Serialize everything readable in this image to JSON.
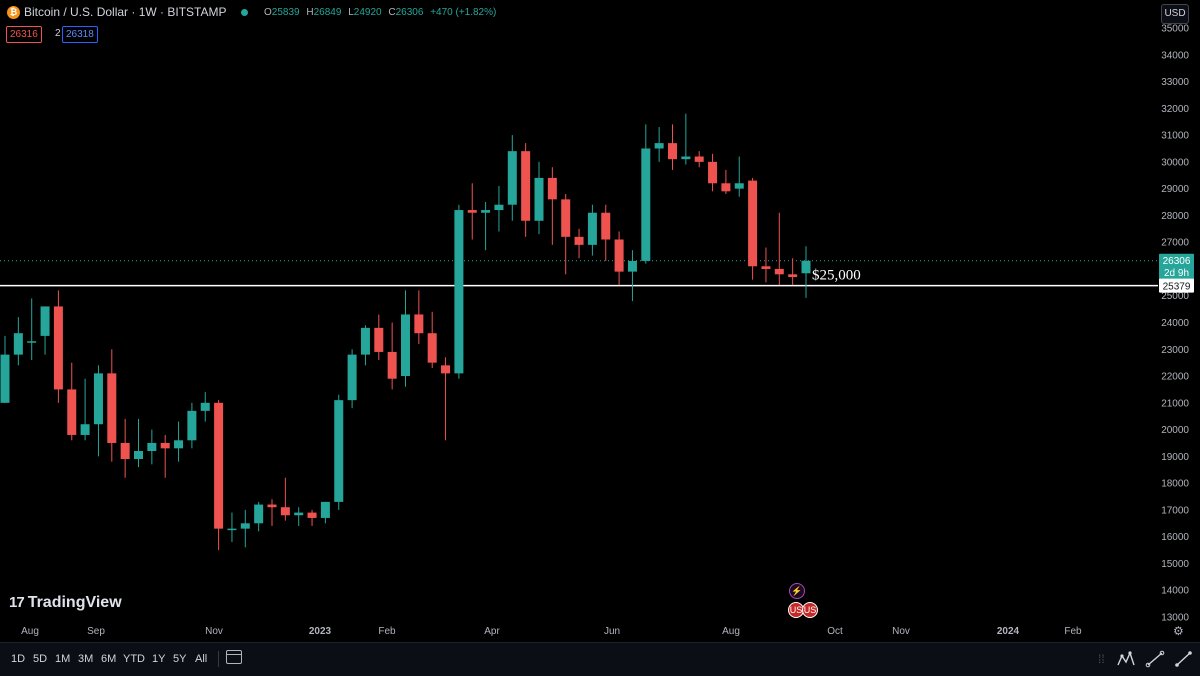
{
  "header": {
    "symbol": "Bitcoin / U.S. Dollar · 1W · BITSTAMP",
    "btc_icon": "₿",
    "open_label": "O",
    "open": "25839",
    "high_label": "H",
    "high": "26849",
    "low_label": "L",
    "low": "24920",
    "close_label": "C",
    "close": "26306",
    "change": "+470 (+1.82%)"
  },
  "trade": {
    "sell": "26316",
    "spread": "2",
    "buy": "26318"
  },
  "currency_button": "USD",
  "colors": {
    "up": "#26a69a",
    "down": "#ef5350",
    "background": "#000000",
    "level_line": "#ffffff",
    "price_line": "#26a69a"
  },
  "chart_data": {
    "type": "candlestick",
    "y_ticks": [
      "35000",
      "34000",
      "33000",
      "32000",
      "31000",
      "30000",
      "29000",
      "28000",
      "27000",
      "26000",
      "25000",
      "24000",
      "23000",
      "22000",
      "21000",
      "20000",
      "19000",
      "18000",
      "17000",
      "16000",
      "15000",
      "14000",
      "13000"
    ],
    "x_ticks": [
      "Aug",
      "Sep",
      "Nov",
      "2023",
      "Feb",
      "Apr",
      "Jun",
      "Aug",
      "Oct",
      "Nov",
      "2024",
      "Feb"
    ],
    "ylim": [
      12500,
      35300
    ],
    "level_line": {
      "value": 25379,
      "label": "$25,000"
    },
    "last_price": {
      "value": 26306,
      "label": "26306",
      "countdown": "2d 9h"
    },
    "level_value_label": "25379",
    "candles": [
      {
        "o": 21000,
        "h": 23500,
        "l": 21000,
        "c": 22800
      },
      {
        "o": 22800,
        "h": 24200,
        "l": 22400,
        "c": 23600
      },
      {
        "o": 23300,
        "h": 24900,
        "l": 22600,
        "c": 23300
      },
      {
        "o": 23500,
        "h": 24600,
        "l": 22800,
        "c": 24600
      },
      {
        "o": 24600,
        "h": 25200,
        "l": 21000,
        "c": 21500
      },
      {
        "o": 21500,
        "h": 22500,
        "l": 19600,
        "c": 19800
      },
      {
        "o": 19800,
        "h": 21900,
        "l": 19600,
        "c": 20200
      },
      {
        "o": 20200,
        "h": 22400,
        "l": 19000,
        "c": 22100
      },
      {
        "o": 22100,
        "h": 23000,
        "l": 18800,
        "c": 19500
      },
      {
        "o": 19500,
        "h": 20400,
        "l": 18200,
        "c": 18900
      },
      {
        "o": 18900,
        "h": 20400,
        "l": 18600,
        "c": 19200
      },
      {
        "o": 19200,
        "h": 20000,
        "l": 18700,
        "c": 19500
      },
      {
        "o": 19500,
        "h": 19800,
        "l": 18200,
        "c": 19300
      },
      {
        "o": 19300,
        "h": 20300,
        "l": 18800,
        "c": 19600
      },
      {
        "o": 19600,
        "h": 21000,
        "l": 19300,
        "c": 20700
      },
      {
        "o": 20700,
        "h": 21400,
        "l": 20300,
        "c": 21000
      },
      {
        "o": 21000,
        "h": 21100,
        "l": 15500,
        "c": 16300
      },
      {
        "o": 16300,
        "h": 16900,
        "l": 15800,
        "c": 16300
      },
      {
        "o": 16300,
        "h": 17000,
        "l": 15600,
        "c": 16500
      },
      {
        "o": 16500,
        "h": 17300,
        "l": 16200,
        "c": 17200
      },
      {
        "o": 17200,
        "h": 17400,
        "l": 16400,
        "c": 17100
      },
      {
        "o": 17100,
        "h": 18200,
        "l": 16600,
        "c": 16800
      },
      {
        "o": 16800,
        "h": 17100,
        "l": 16400,
        "c": 16900
      },
      {
        "o": 16900,
        "h": 17000,
        "l": 16400,
        "c": 16700
      },
      {
        "o": 16700,
        "h": 17300,
        "l": 16500,
        "c": 17300
      },
      {
        "o": 17300,
        "h": 21300,
        "l": 17000,
        "c": 21100
      },
      {
        "o": 21100,
        "h": 23000,
        "l": 20800,
        "c": 22800
      },
      {
        "o": 22800,
        "h": 23900,
        "l": 22400,
        "c": 23800
      },
      {
        "o": 23800,
        "h": 24300,
        "l": 22600,
        "c": 22900
      },
      {
        "o": 22900,
        "h": 24000,
        "l": 21500,
        "c": 21900
      },
      {
        "o": 22000,
        "h": 25200,
        "l": 21600,
        "c": 24300
      },
      {
        "o": 24300,
        "h": 25200,
        "l": 23200,
        "c": 23600
      },
      {
        "o": 23600,
        "h": 24400,
        "l": 22300,
        "c": 22500
      },
      {
        "o": 22400,
        "h": 22700,
        "l": 19600,
        "c": 22100
      },
      {
        "o": 22100,
        "h": 28400,
        "l": 21900,
        "c": 28200
      },
      {
        "o": 28200,
        "h": 29200,
        "l": 27100,
        "c": 28100
      },
      {
        "o": 28100,
        "h": 28500,
        "l": 26700,
        "c": 28200
      },
      {
        "o": 28200,
        "h": 29100,
        "l": 27400,
        "c": 28400
      },
      {
        "o": 28400,
        "h": 31000,
        "l": 27800,
        "c": 30400
      },
      {
        "o": 30400,
        "h": 30700,
        "l": 27200,
        "c": 27800
      },
      {
        "o": 27800,
        "h": 30000,
        "l": 27300,
        "c": 29400
      },
      {
        "o": 29400,
        "h": 29800,
        "l": 26900,
        "c": 28600
      },
      {
        "o": 28600,
        "h": 28800,
        "l": 25800,
        "c": 27200
      },
      {
        "o": 27200,
        "h": 27500,
        "l": 26400,
        "c": 26900
      },
      {
        "o": 26900,
        "h": 28400,
        "l": 26500,
        "c": 28100
      },
      {
        "o": 28100,
        "h": 28400,
        "l": 26300,
        "c": 27100
      },
      {
        "o": 27100,
        "h": 27400,
        "l": 25400,
        "c": 25900
      },
      {
        "o": 25900,
        "h": 26700,
        "l": 24800,
        "c": 26300
      },
      {
        "o": 26300,
        "h": 31400,
        "l": 26200,
        "c": 30500
      },
      {
        "o": 30500,
        "h": 31300,
        "l": 30000,
        "c": 30700
      },
      {
        "o": 30700,
        "h": 31400,
        "l": 29700,
        "c": 30100
      },
      {
        "o": 30100,
        "h": 31800,
        "l": 29900,
        "c": 30200
      },
      {
        "o": 30200,
        "h": 30400,
        "l": 29800,
        "c": 30000
      },
      {
        "o": 30000,
        "h": 30300,
        "l": 28900,
        "c": 29200
      },
      {
        "o": 29200,
        "h": 29700,
        "l": 28800,
        "c": 28900
      },
      {
        "o": 29000,
        "h": 30200,
        "l": 28700,
        "c": 29200
      },
      {
        "o": 29300,
        "h": 29400,
        "l": 25600,
        "c": 26100
      },
      {
        "o": 26100,
        "h": 26800,
        "l": 25500,
        "c": 26000
      },
      {
        "o": 26000,
        "h": 28100,
        "l": 25400,
        "c": 25800
      },
      {
        "o": 25800,
        "h": 26400,
        "l": 25400,
        "c": 25700
      },
      {
        "o": 25839,
        "h": 26849,
        "l": 24920,
        "c": 26306
      }
    ]
  },
  "watermark": {
    "logo_mark": "17",
    "logo_text": "TradingView"
  },
  "events": {
    "purple_icon": "⚡",
    "flag1": "US",
    "flag2": "US"
  },
  "settings_icon": "⚙",
  "toolbar": {
    "ranges": [
      "1D",
      "5D",
      "1M",
      "3M",
      "6M",
      "YTD",
      "1Y",
      "5Y",
      "All"
    ],
    "grip": "⁞⁞"
  }
}
